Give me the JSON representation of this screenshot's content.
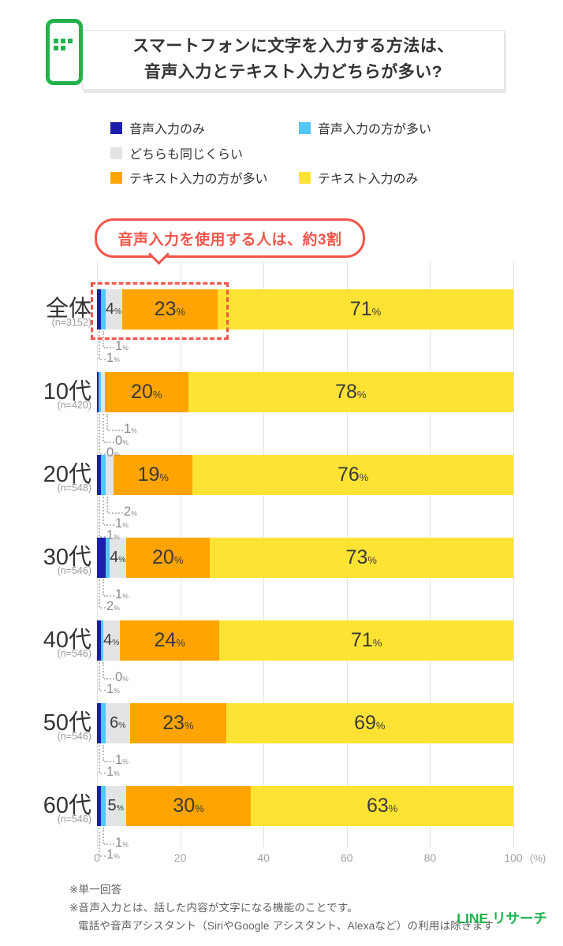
{
  "header": {
    "title_lines": [
      "スマートフォンに文字を入力する方法は、",
      "音声入力とテキスト入力どちらが多い?"
    ]
  },
  "colors": {
    "brand_green": "#22b24c",
    "annotation_red": "#f1564b",
    "voice_only": "#1a1ea9",
    "voice_more": "#52c6f4",
    "same": "#e2e4e6",
    "text_more": "#ffa400",
    "text_only": "#ffe334"
  },
  "legend": {
    "items": [
      {
        "label": "音声入力のみ",
        "color": "#1a1ea9"
      },
      {
        "label": "音声入力の方が多い",
        "color": "#52c6f4"
      },
      {
        "label": "どちらも同じくらい",
        "color": "#e2e4e6"
      },
      {
        "label": "テキスト入力の方が多い",
        "color": "#ffa400"
      },
      {
        "label": "テキスト入力のみ",
        "color": "#ffe334"
      }
    ]
  },
  "annotation": {
    "text": "音声入力を使用する人は、約3割"
  },
  "chart_data": {
    "type": "bar",
    "stacked": true,
    "orientation": "horizontal",
    "unit": "%",
    "series": [
      "音声入力のみ",
      "音声入力の方が多い",
      "どちらも同じくらい",
      "テキスト入力の方が多い",
      "テキスト入力のみ"
    ],
    "series_colors": [
      "#1a1ea9",
      "#52c6f4",
      "#e2e4e6",
      "#ffa400",
      "#ffe334"
    ],
    "categories": [
      "全体",
      "10代",
      "20代",
      "30代",
      "40代",
      "50代",
      "60代"
    ],
    "rows": [
      {
        "category": "全体",
        "n": "(n=3152)",
        "values": [
          1,
          1,
          4,
          23,
          71
        ],
        "callouts": [
          {
            "series": 1,
            "label": "1"
          },
          {
            "series": 0,
            "label": "1"
          }
        ]
      },
      {
        "category": "10代",
        "n": "(n=420)",
        "values": [
          0,
          0,
          1,
          20,
          78
        ],
        "callouts": [
          {
            "series": 2,
            "label": "1"
          },
          {
            "series": 1,
            "label": "0"
          },
          {
            "series": 0,
            "label": "0"
          }
        ]
      },
      {
        "category": "20代",
        "n": "(n=548)",
        "values": [
          1,
          1,
          2,
          19,
          76
        ],
        "callouts": [
          {
            "series": 2,
            "label": "2"
          },
          {
            "series": 1,
            "label": "1"
          },
          {
            "series": 0,
            "label": "1"
          }
        ]
      },
      {
        "category": "30代",
        "n": "(n=546)",
        "values": [
          2,
          1,
          4,
          20,
          73
        ],
        "callouts": [
          {
            "series": 1,
            "label": "1"
          },
          {
            "series": 0,
            "label": "2"
          }
        ]
      },
      {
        "category": "40代",
        "n": "(n=546)",
        "values": [
          1,
          0,
          4,
          24,
          71
        ],
        "callouts": [
          {
            "series": 1,
            "label": "0"
          },
          {
            "series": 0,
            "label": "1"
          }
        ]
      },
      {
        "category": "50代",
        "n": "(n=546)",
        "values": [
          1,
          1,
          6,
          23,
          69
        ],
        "callouts": [
          {
            "series": 1,
            "label": "1"
          },
          {
            "series": 0,
            "label": "1"
          }
        ]
      },
      {
        "category": "60代",
        "n": "(n=546)",
        "values": [
          1,
          1,
          5,
          30,
          63
        ],
        "callouts": [
          {
            "series": 1,
            "label": "1"
          },
          {
            "series": 0,
            "label": "1"
          }
        ]
      }
    ],
    "x_axis": {
      "ticks": [
        "0",
        "20",
        "40",
        "60",
        "80",
        "100"
      ],
      "unit_label": "(%)",
      "range": [
        0,
        100
      ],
      "grid": true
    }
  },
  "footnotes": [
    "※単一回答",
    "※音声入力とは、話した内容が文字になる機能のことです。",
    "電話や音声アシスタント（SiriやGoogle アシスタント、Alexaなど）の利用は除きます"
  ],
  "logo": "LINE リサーチ"
}
